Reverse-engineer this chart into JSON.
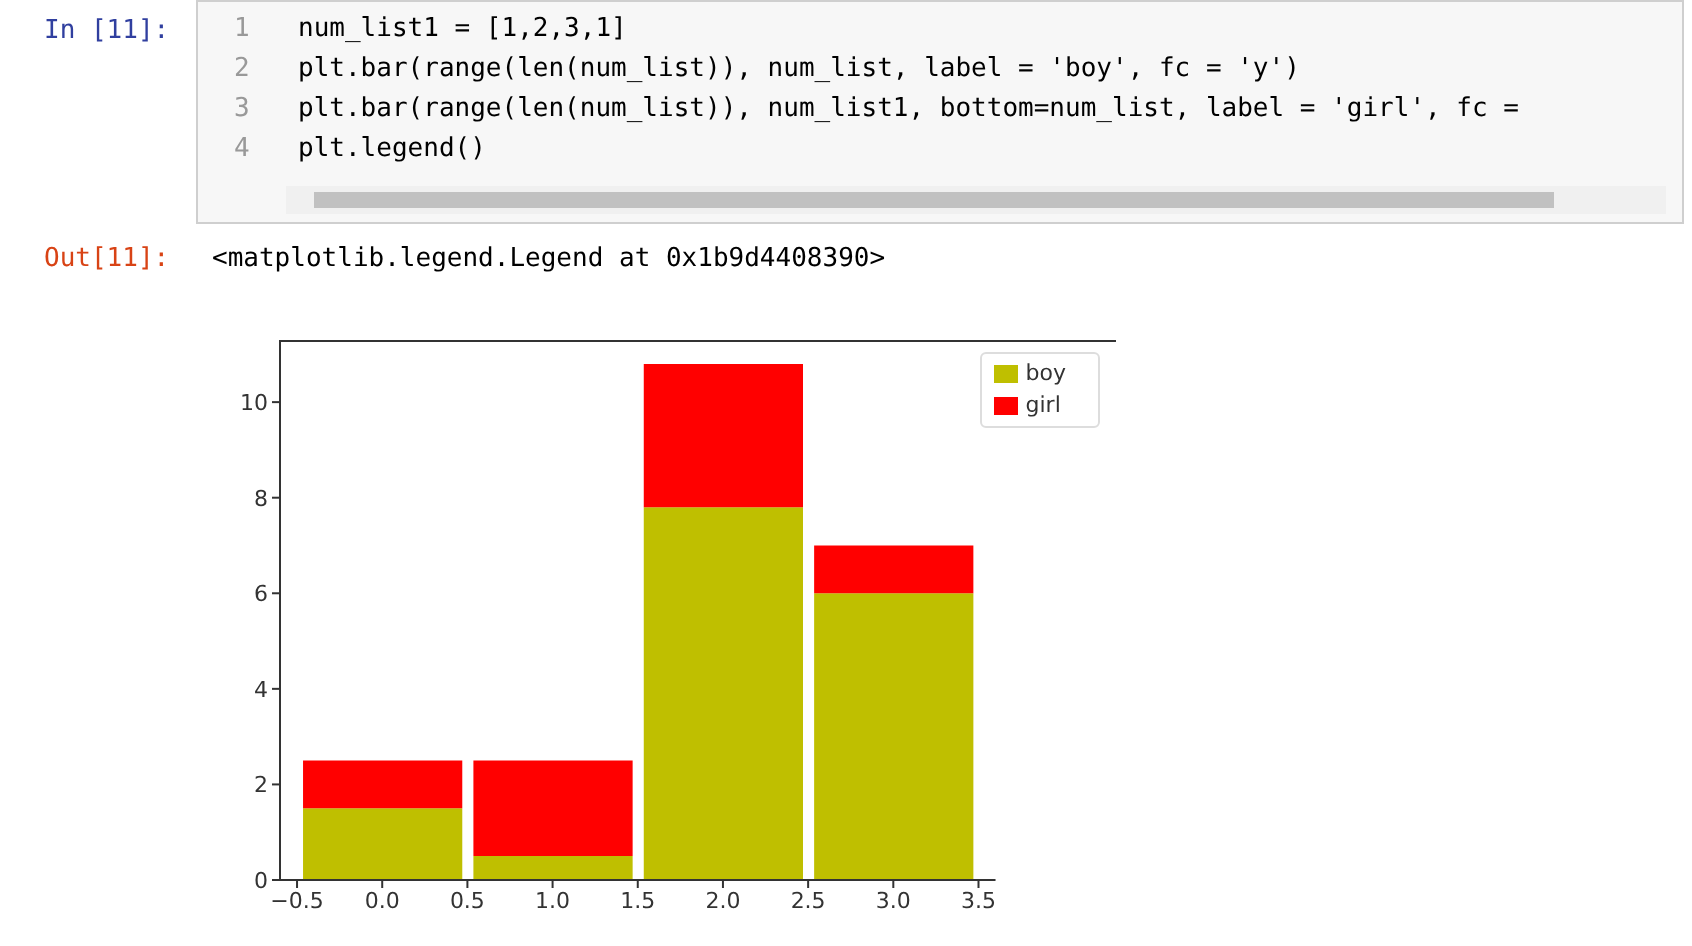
{
  "chart_data": {
    "type": "bar",
    "stacked": true,
    "x": [
      0,
      1,
      2,
      3
    ],
    "series": [
      {
        "name": "boy",
        "color": "#bfbf00",
        "values": [
          1.5,
          0.5,
          7.8,
          6
        ]
      },
      {
        "name": "girl",
        "color": "#ff0000",
        "values": [
          1,
          2,
          3,
          1
        ]
      }
    ],
    "xlim": [
      -0.6,
      3.6
    ],
    "xticks": [
      {
        "value": -0.5,
        "label": "−0.5"
      },
      {
        "value": 0,
        "label": "0.0"
      },
      {
        "value": 0.5,
        "label": "0.5"
      },
      {
        "value": 1,
        "label": "1.0"
      },
      {
        "value": 1.5,
        "label": "1.5"
      },
      {
        "value": 2,
        "label": "2.0"
      },
      {
        "value": 2.5,
        "label": "2.5"
      },
      {
        "value": 3,
        "label": "3.0"
      },
      {
        "value": 3.5,
        "label": "3.5"
      }
    ],
    "ylim": [
      0,
      11.3
    ],
    "yticks": [
      0,
      2,
      4,
      6,
      8,
      10
    ],
    "legend": "top right",
    "grid": false,
    "annotations": [
      "In [11]:",
      "1",
      "2",
      "3",
      "4",
      "num_list1 = [1,2,3,1]",
      "plt.bar(range(len(num_list)), num_list, label = 'boy', fc = 'y')",
      "plt.bar(range(len(num_list)), num_list1, bottom=num_list, label = 'girl', fc =",
      "plt.legend()",
      "Out[11]:",
      "<matplotlib.legend.Legend at 0x1b9d4408390>"
    ]
  }
}
